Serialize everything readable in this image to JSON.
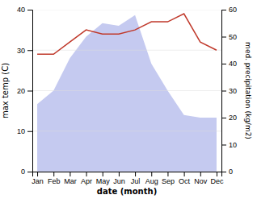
{
  "chart_data": {
    "type": "line",
    "xlabel": "date (month)",
    "ylabel": "max temp (C)",
    "y2label": "med. precipitation (kg/m2)",
    "categories": [
      "Jan",
      "Feb",
      "Mar",
      "Apr",
      "May",
      "Jun",
      "Jul",
      "Aug",
      "Sep",
      "Oct",
      "Nov",
      "Dec"
    ],
    "series": [
      {
        "type": "area",
        "axis": "y2",
        "color": "#c5caf0",
        "values": [
          25,
          30,
          42,
          50,
          55,
          54,
          58,
          40,
          30,
          21,
          20,
          20
        ]
      },
      {
        "type": "line",
        "color": "#c0392b",
        "values": [
          29,
          29,
          32,
          35,
          34,
          34,
          35,
          37,
          37,
          39,
          32,
          30
        ]
      }
    ],
    "ylim": [
      0,
      40
    ],
    "yticks": [
      0,
      10,
      20,
      30,
      40
    ],
    "y2lim": [
      0,
      60
    ],
    "y2ticks": [
      0,
      10,
      20,
      30,
      40,
      50,
      60
    ],
    "grid": true
  }
}
